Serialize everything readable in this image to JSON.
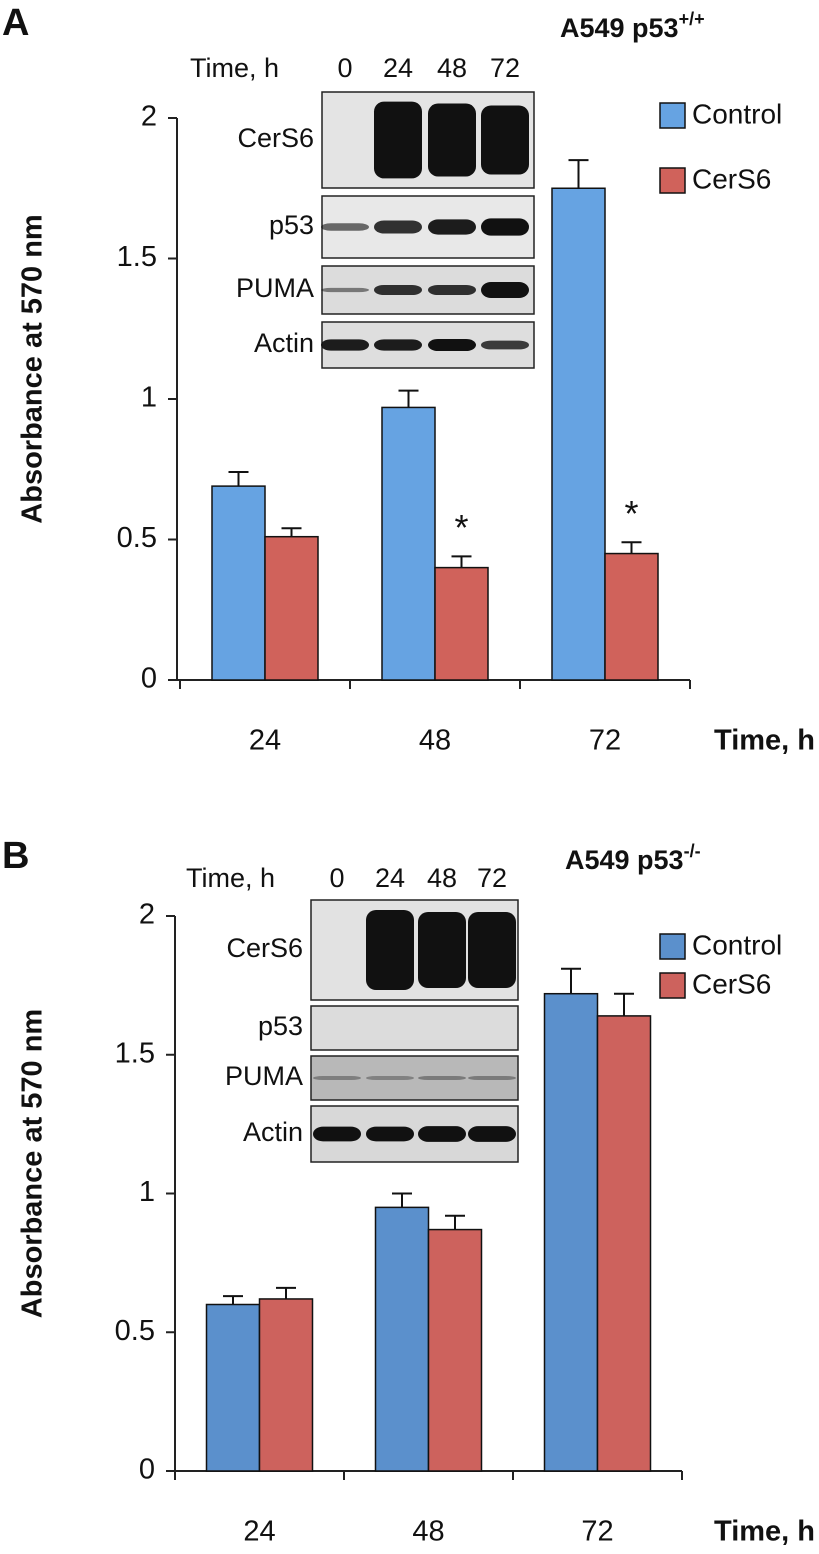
{
  "chart_data": [
    {
      "type": "bar",
      "panel": "A",
      "title": "A549 p53",
      "title_superscript": "+/+",
      "ylabel": "Absorbance at  570 nm",
      "xlabel": "Time, h",
      "categories": [
        "24",
        "48",
        "72"
      ],
      "series": [
        {
          "name": "Control",
          "color": "#66a3e2",
          "values": [
            0.69,
            0.97,
            1.75
          ],
          "errors": [
            0.05,
            0.06,
            0.1
          ]
        },
        {
          "name": "CerS6",
          "color": "#d0625b",
          "values": [
            0.51,
            0.4,
            0.45
          ],
          "errors": [
            0.03,
            0.04,
            0.04
          ]
        }
      ],
      "annotations": [
        "*",
        "*"
      ],
      "ylim": [
        0,
        2
      ],
      "yticks": [
        0,
        0.5,
        1,
        1.5,
        2
      ],
      "blot": {
        "header": "Time, h",
        "lanes": [
          "0",
          "24",
          "48",
          "72"
        ],
        "rows": [
          "CerS6",
          "p53",
          "PUMA",
          "Actin"
        ]
      }
    },
    {
      "type": "bar",
      "panel": "B",
      "title": "A549 p53",
      "title_superscript": "-/-",
      "ylabel": "Absorbance at 570 nm",
      "xlabel": "Time, h",
      "categories": [
        "24",
        "48",
        "72"
      ],
      "series": [
        {
          "name": "Control",
          "color": "#5b90cc",
          "values": [
            0.6,
            0.95,
            1.72
          ],
          "errors": [
            0.03,
            0.05,
            0.09
          ]
        },
        {
          "name": "CerS6",
          "color": "#cd625d",
          "values": [
            0.62,
            0.87,
            1.64
          ],
          "errors": [
            0.04,
            0.05,
            0.08
          ]
        }
      ],
      "ylim": [
        0,
        2
      ],
      "yticks": [
        0,
        0.5,
        1,
        1.5,
        2
      ],
      "blot": {
        "header": "Time, h",
        "lanes": [
          "0",
          "24",
          "48",
          "72"
        ],
        "rows": [
          "CerS6",
          "p53",
          "PUMA",
          "Actin"
        ]
      }
    }
  ]
}
